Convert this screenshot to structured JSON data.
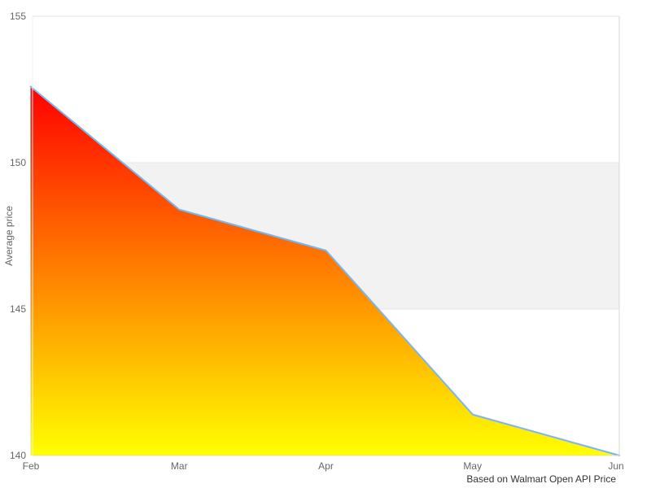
{
  "chart_data": {
    "type": "area",
    "x": [
      "Feb",
      "Mar",
      "Apr",
      "May",
      "Jun"
    ],
    "series": [
      {
        "name": "Average price",
        "values": [
          152.6,
          148.4,
          147.0,
          141.4,
          140.0
        ]
      }
    ],
    "title": "",
    "xlabel": "",
    "ylabel": "Average price",
    "ylim": [
      140,
      155
    ],
    "yticks": [
      140,
      145,
      150,
      155
    ],
    "grid": true,
    "legend": "none",
    "plot_band": {
      "from": 145,
      "to": 150,
      "color": "#f2f2f2"
    },
    "caption": "Based on Walmart Open API Price",
    "colors": {
      "line": "#7cb5ec",
      "fill_top": "#ff0000",
      "fill_bottom": "#ffff00",
      "band": "#f2f2f2",
      "gridline": "#e6e6e6",
      "border": "#d8d8d8",
      "axis_overlay": "#efefef",
      "tick_text": "#666666",
      "caption_text": "#333333",
      "background": "#ffffff"
    }
  }
}
